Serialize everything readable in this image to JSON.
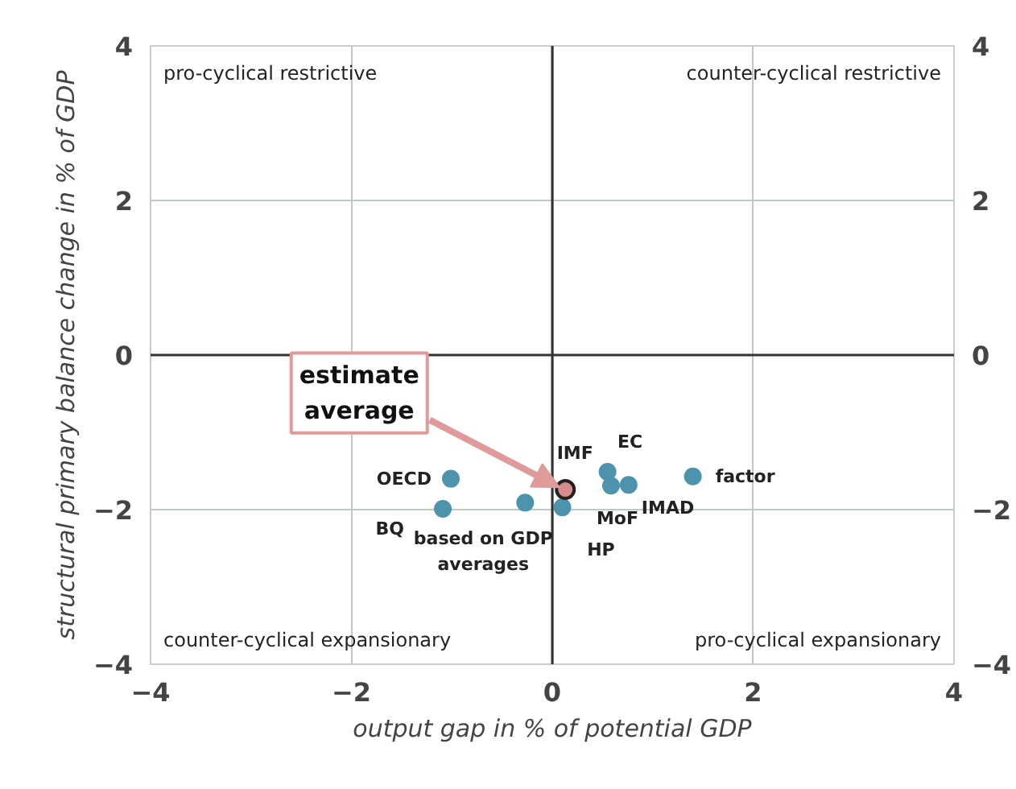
{
  "chart_data": {
    "type": "scatter",
    "xlabel": "output gap in % of potential GDP",
    "ylabel": "structural primary balance change in % of GDP",
    "xlim": [
      -4,
      4
    ],
    "ylim": [
      -4,
      4
    ],
    "y2lim": [
      -4,
      4
    ],
    "xticks": [
      -4,
      -2,
      0,
      2,
      4
    ],
    "yticks": [
      -4,
      -2,
      0,
      2,
      4
    ],
    "y2ticks": [
      -4,
      -2,
      0,
      2,
      4
    ],
    "grid": true,
    "marker": "circle",
    "series": [
      {
        "color": "#4e93ad",
        "x": [
          -1.01,
          -1.09,
          -0.27,
          0.1,
          0.55,
          0.585,
          0.76,
          1.4
        ],
        "values": [
          -1.6,
          -1.99,
          -1.91,
          -1.97,
          -1.51,
          -1.69,
          -1.68,
          -1.57
        ]
      },
      {
        "color": "#d98c8c",
        "x": [
          0.13
        ],
        "values": [
          -1.74
        ]
      }
    ],
    "annotations": [
      "pro-cyclical restrictive",
      "counter-cyclical restrictive",
      "counter-cyclical expansionary",
      "pro-cyclical expansionary",
      {
        "text": "OECD",
        "x": -1.01,
        "y": -1.6
      },
      {
        "text": "BQ",
        "x": -1.09,
        "y": -1.99
      },
      {
        "text": "based on GDP averages",
        "x": -0.27,
        "y": -1.91
      },
      {
        "text": "HP",
        "x": 0.1,
        "y": -1.97
      },
      {
        "text": "IMF",
        "x": 0.13,
        "y": -1.74
      },
      {
        "text": "EC",
        "x": 0.55,
        "y": -1.51
      },
      {
        "text": "MoF",
        "x": 0.585,
        "y": -1.69
      },
      {
        "text": "IMAD",
        "x": 0.76,
        "y": -1.68
      },
      {
        "text": "factor",
        "x": 1.4,
        "y": -1.57
      },
      {
        "text": "estimate average",
        "x": 0.13,
        "y": -1.74
      }
    ]
  }
}
